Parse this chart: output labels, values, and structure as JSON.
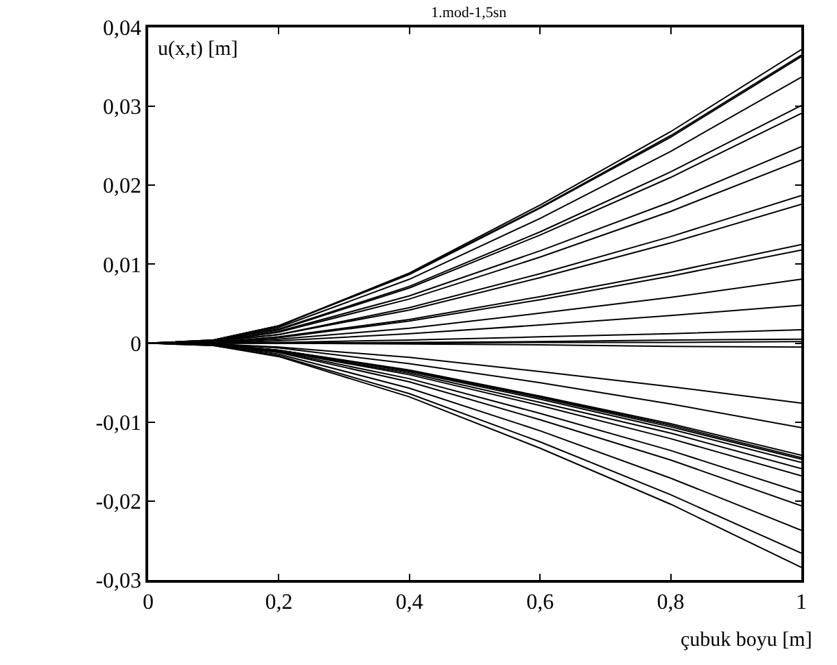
{
  "chart_data": {
    "type": "line",
    "title": "1.mod-1,5sn",
    "xlabel": "çubuk boyu [m]",
    "ylabel": "u(x,t) [m]",
    "x": [
      0,
      0.1,
      0.2,
      0.4,
      0.6,
      0.8,
      1
    ],
    "xlim": [
      0,
      1
    ],
    "ylim": [
      -0.03,
      0.04
    ],
    "xticks": [
      0,
      {
        "value": 0.2,
        "label": "0,2"
      },
      {
        "value": 0.4,
        "label": "0,4"
      },
      {
        "value": 0.6,
        "label": "0,6"
      },
      {
        "value": 0.8,
        "label": "0,8"
      },
      1
    ],
    "yticks": [
      {
        "value": -0.03,
        "label": "-0,03"
      },
      {
        "value": -0.02,
        "label": "-0,02"
      },
      {
        "value": -0.01,
        "label": "-0,01"
      },
      0,
      {
        "value": 0.01,
        "label": "0,01"
      },
      {
        "value": 0.02,
        "label": "0,02"
      },
      {
        "value": 0.03,
        "label": "0,03"
      },
      {
        "value": 0.04,
        "label": "0,04"
      }
    ],
    "grid": false,
    "marker": "none",
    "line_style": "solid",
    "series": [
      {
        "color": "#000000",
        "values": [
          0,
          0.0004,
          0.0022,
          0.0089,
          0.0175,
          0.0268,
          0.0372
        ]
      },
      {
        "color": "#000000",
        "values": [
          0,
          0.0004,
          0.0022,
          0.0088,
          0.0172,
          0.0263,
          0.0365
        ]
      },
      {
        "color": "#000000",
        "values": [
          0,
          0.0004,
          0.0022,
          0.0087,
          0.0171,
          0.0261,
          0.0363
        ]
      },
      {
        "color": "#000000",
        "values": [
          0,
          0.0003,
          0.002,
          0.0081,
          0.0158,
          0.0243,
          0.0337
        ]
      },
      {
        "color": "#000000",
        "values": [
          0,
          0.0003,
          0.0018,
          0.0072,
          0.0141,
          0.0217,
          0.0301
        ]
      },
      {
        "color": "#000000",
        "values": [
          0,
          0.0003,
          0.0017,
          0.007,
          0.0137,
          0.021,
          0.0291
        ]
      },
      {
        "color": "#000000",
        "values": [
          0,
          0.0002,
          0.0015,
          0.006,
          0.0117,
          0.0179,
          0.0249
        ]
      },
      {
        "color": "#000000",
        "values": [
          0,
          0.0002,
          0.0014,
          0.0056,
          0.0109,
          0.0167,
          0.0232
        ]
      },
      {
        "color": "#000000",
        "values": [
          0,
          0.0002,
          0.0011,
          0.0045,
          0.0088,
          0.0135,
          0.0187
        ]
      },
      {
        "color": "#000000",
        "values": [
          0,
          0.0002,
          0.0011,
          0.0042,
          0.0083,
          0.0127,
          0.0176
        ]
      },
      {
        "color": "#000000",
        "values": [
          0,
          0.0001,
          0.0008,
          0.003,
          0.0059,
          0.009,
          0.0125
        ]
      },
      {
        "color": "#000000",
        "values": [
          0,
          0.0001,
          0.0007,
          0.0028,
          0.0055,
          0.0085,
          0.0118
        ]
      },
      {
        "color": "#000000",
        "values": [
          0,
          0.0001,
          0.0005,
          0.0019,
          0.0038,
          0.0058,
          0.0081
        ]
      },
      {
        "color": "#000000",
        "values": [
          0,
          0,
          0.0003,
          0.0012,
          0.0023,
          0.0035,
          0.0048
        ]
      },
      {
        "color": "#000000",
        "values": [
          0,
          0,
          0.0001,
          0.0004,
          0.0008,
          0.0012,
          0.0017
        ]
      },
      {
        "color": "#000000",
        "values": [
          0,
          0,
          0,
          0.0001,
          0.0002,
          0.0004,
          0.0005
        ]
      },
      {
        "color": "#000000",
        "values": [
          0,
          0,
          0,
          0,
          0.0001,
          0.0001,
          0.0002
        ]
      },
      {
        "color": "#000000",
        "values": [
          0,
          0,
          0,
          -0.0001,
          -0.0002,
          -0.0004,
          -0.0005
        ]
      },
      {
        "color": "#000000",
        "values": [
          0,
          -0.0001,
          -0.0005,
          -0.0018,
          -0.0036,
          -0.0055,
          -0.0076
        ]
      },
      {
        "color": "#000000",
        "values": [
          0,
          -0.0001,
          -0.0006,
          -0.0026,
          -0.005,
          -0.0077,
          -0.0107
        ]
      },
      {
        "color": "#000000",
        "values": [
          0,
          -0.0001,
          -0.0009,
          -0.0034,
          -0.0067,
          -0.0102,
          -0.0142
        ]
      },
      {
        "color": "#000000",
        "values": [
          0,
          -0.0001,
          -0.0009,
          -0.0035,
          -0.0068,
          -0.0104,
          -0.0145
        ]
      },
      {
        "color": "#000000",
        "values": [
          0,
          -0.0001,
          -0.0009,
          -0.0035,
          -0.0069,
          -0.0106,
          -0.0147
        ]
      },
      {
        "color": "#000000",
        "values": [
          0,
          -0.0002,
          -0.0009,
          -0.0036,
          -0.0071,
          -0.0109,
          -0.0151
        ]
      },
      {
        "color": "#000000",
        "values": [
          0,
          -0.0002,
          -0.001,
          -0.0038,
          -0.0075,
          -0.0114,
          -0.0159
        ]
      },
      {
        "color": "#000000",
        "values": [
          0,
          -0.0002,
          -0.001,
          -0.004,
          -0.0079,
          -0.0121,
          -0.0168
        ]
      },
      {
        "color": "#000000",
        "values": [
          0,
          -0.0002,
          -0.0011,
          -0.0045,
          -0.0089,
          -0.0136,
          -0.0189
        ]
      },
      {
        "color": "#000000",
        "values": [
          0,
          -0.0002,
          -0.0012,
          -0.0049,
          -0.0097,
          -0.0148,
          -0.0206
        ]
      },
      {
        "color": "#000000",
        "values": [
          0,
          -0.0002,
          -0.0014,
          -0.0057,
          -0.0111,
          -0.0171,
          -0.0237
        ]
      },
      {
        "color": "#000000",
        "values": [
          0,
          -0.0003,
          -0.0016,
          -0.0064,
          -0.0125,
          -0.0192,
          -0.0266
        ]
      },
      {
        "color": "#000000",
        "values": [
          0,
          -0.0003,
          -0.0017,
          -0.0068,
          -0.0133,
          -0.0204,
          -0.0284
        ]
      }
    ]
  }
}
